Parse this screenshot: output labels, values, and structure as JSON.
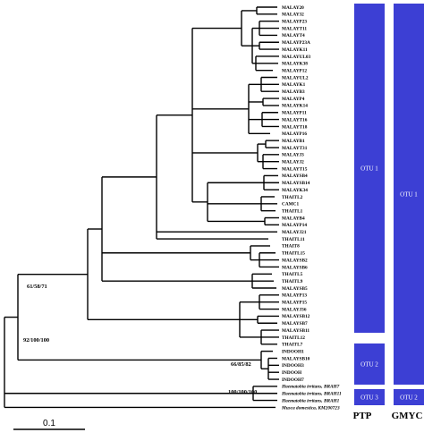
{
  "tips": [
    {
      "label": "MALAY20"
    },
    {
      "label": "MALAY32"
    },
    {
      "label": "MALAYP23"
    },
    {
      "label": "MALAYT11"
    },
    {
      "label": "MALAYT4"
    },
    {
      "label": "MALAYP23A"
    },
    {
      "label": "MALAYK11"
    },
    {
      "label": "MALAYUL03"
    },
    {
      "label": "MALAYK38"
    },
    {
      "label": "MALAYP12"
    },
    {
      "label": "MALAYUL2"
    },
    {
      "label": "MALAYK1"
    },
    {
      "label": "MALAYB3"
    },
    {
      "label": "MALAYP4"
    },
    {
      "label": "MALAYK14"
    },
    {
      "label": "MALAYP11"
    },
    {
      "label": "MALAYT16"
    },
    {
      "label": "MALAYT18"
    },
    {
      "label": "MALAYP16"
    },
    {
      "label": "MALAYB1"
    },
    {
      "label": "MALAYT31"
    },
    {
      "label": "MALAYJ3"
    },
    {
      "label": "MALAYJ2"
    },
    {
      "label": "MALAYT15"
    },
    {
      "label": "MALAYSB4"
    },
    {
      "label": "MALAYSB14"
    },
    {
      "label": "MALAYK34"
    },
    {
      "label": "THAITL2"
    },
    {
      "label": "CAMC1"
    },
    {
      "label": "THAITL1"
    },
    {
      "label": "MALAYB4"
    },
    {
      "label": "MALAYP14"
    },
    {
      "label": "MALAYJ21"
    },
    {
      "label": "THAITL11"
    },
    {
      "label": "THAIT8"
    },
    {
      "label": "THAITL15"
    },
    {
      "label": "MALAYSB2"
    },
    {
      "label": "MALAYSB6"
    },
    {
      "label": "THAITL5"
    },
    {
      "label": "THAITL9"
    },
    {
      "label": "MALAYSB5"
    },
    {
      "label": "MALAYP13"
    },
    {
      "label": "MALAYP15"
    },
    {
      "label": "MALAYJ36"
    },
    {
      "label": "MALAYSB12"
    },
    {
      "label": "MALAYSB7"
    },
    {
      "label": "MALAYSB11"
    },
    {
      "label": "THAITL12"
    },
    {
      "label": "THAITL7"
    },
    {
      "label": "INDOOH1"
    },
    {
      "label": "MALAYSB10"
    },
    {
      "label": "INDOOH3"
    },
    {
      "label": "INDOOH"
    },
    {
      "label": "INDOOH7"
    },
    {
      "label": "Haematobia irritans, BRAH7",
      "italic": true
    },
    {
      "label": "Haematobia irritans, BRAH11",
      "italic": true
    },
    {
      "label": "Haematobia irritans, BRAH1",
      "italic": true
    },
    {
      "label": "Musca domestica, KM200723",
      "italic": true
    }
  ],
  "support_values": [
    {
      "text": "61/58/71"
    },
    {
      "text": "92/100/100"
    },
    {
      "text": "66/85/82"
    },
    {
      "text": "100/100/100"
    }
  ],
  "ptp": {
    "method": "PTP",
    "otus": [
      {
        "label": "OTU 1"
      },
      {
        "label": "OTU 2"
      },
      {
        "label": "OTU 3"
      }
    ]
  },
  "gmyc": {
    "method": "GMYC",
    "otus": [
      {
        "label": "OTU 1"
      },
      {
        "label": "OTU 2"
      }
    ]
  },
  "scale_bar": {
    "label": "0.1"
  },
  "colors": {
    "otu_fill": "#3c3fd4",
    "line": "#000000"
  }
}
